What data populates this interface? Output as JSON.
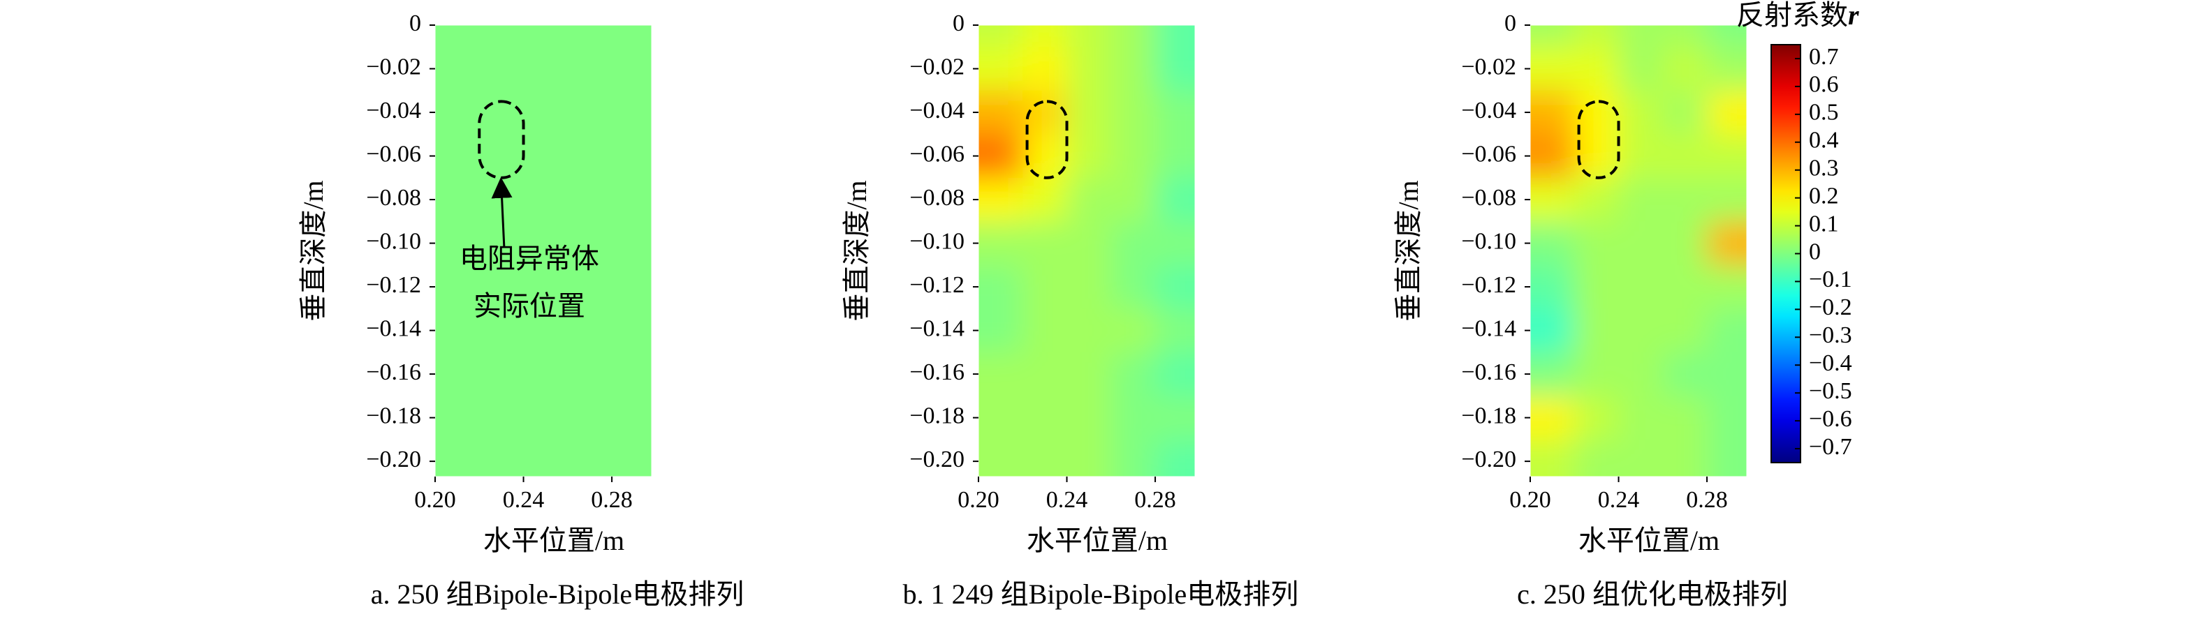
{
  "chart_data": [
    {
      "type": "heatmap",
      "caption": "a. 250 组Bipole-Bipole电极排列",
      "xlabel": "水平位置/m",
      "ylabel": "垂直深度/m",
      "xlim": [
        0.2,
        0.298
      ],
      "ylim": [
        -0.207,
        0
      ],
      "xticks": [
        {
          "value": 0.2,
          "label": "0.20"
        },
        {
          "value": 0.24,
          "label": "0.24"
        },
        {
          "value": 0.28,
          "label": "0.28"
        }
      ],
      "yticks": [
        0,
        {
          "value": -0.02,
          "label": "−0.02"
        },
        {
          "value": -0.04,
          "label": "−0.04"
        },
        {
          "value": -0.06,
          "label": "−0.06"
        },
        {
          "value": -0.08,
          "label": "−0.08"
        },
        {
          "value": -0.1,
          "label": "−0.10"
        },
        {
          "value": -0.12,
          "label": "−0.12"
        },
        {
          "value": -0.14,
          "label": "−0.14"
        },
        {
          "value": -0.16,
          "label": "−0.16"
        },
        {
          "value": -0.18,
          "label": "−0.18"
        },
        {
          "value": -0.2,
          "label": "−0.20"
        }
      ],
      "x": [
        0.21,
        0.23,
        0.25,
        0.27,
        0.29
      ],
      "y": [
        0,
        -0.02,
        -0.04,
        -0.06,
        -0.08,
        -0.1,
        -0.12,
        -0.14,
        -0.16,
        -0.18,
        -0.2
      ],
      "z": [
        [
          0,
          0,
          0,
          0,
          0
        ],
        [
          0,
          0,
          0,
          0,
          0
        ],
        [
          0,
          0,
          0,
          0,
          0
        ],
        [
          0,
          0,
          0,
          0,
          0
        ],
        [
          0,
          0,
          0,
          0,
          0
        ],
        [
          0,
          0,
          0,
          0,
          0
        ],
        [
          0,
          0,
          0,
          0,
          0
        ],
        [
          0,
          0,
          0,
          0,
          0
        ],
        [
          0,
          0,
          0,
          0,
          0
        ],
        [
          0,
          0,
          0,
          0,
          0
        ],
        [
          0,
          0,
          0,
          0,
          0
        ]
      ],
      "anomaly": {
        "x": [
          0.22,
          0.24
        ],
        "y": [
          -0.07,
          -0.035
        ]
      },
      "annotation": [
        "电阻异常体",
        "实际位置"
      ]
    },
    {
      "type": "heatmap",
      "caption": "b. 1 249 组Bipole-Bipole电极排列",
      "xlabel": "水平位置/m",
      "ylabel": "垂直深度/m",
      "xlim": [
        0.2,
        0.298
      ],
      "ylim": [
        -0.207,
        0
      ],
      "xticks": [
        {
          "value": 0.2,
          "label": "0.20"
        },
        {
          "value": 0.24,
          "label": "0.24"
        },
        {
          "value": 0.28,
          "label": "0.28"
        }
      ],
      "yticks": [
        0,
        {
          "value": -0.02,
          "label": "−0.02"
        },
        {
          "value": -0.04,
          "label": "−0.04"
        },
        {
          "value": -0.06,
          "label": "−0.06"
        },
        {
          "value": -0.08,
          "label": "−0.08"
        },
        {
          "value": -0.1,
          "label": "−0.10"
        },
        {
          "value": -0.12,
          "label": "−0.12"
        },
        {
          "value": -0.14,
          "label": "−0.14"
        },
        {
          "value": -0.16,
          "label": "−0.16"
        },
        {
          "value": -0.18,
          "label": "−0.18"
        },
        {
          "value": -0.2,
          "label": "−0.20"
        }
      ],
      "x": [
        0.21,
        0.23,
        0.25,
        0.27,
        0.29
      ],
      "y": [
        0,
        -0.02,
        -0.04,
        -0.06,
        -0.08,
        -0.1,
        -0.12,
        -0.14,
        -0.16,
        -0.18,
        -0.2
      ],
      "z": [
        [
          0.1,
          0.15,
          0.1,
          0.05,
          -0.05
        ],
        [
          0.15,
          0.2,
          0.1,
          0.05,
          -0.05
        ],
        [
          0.3,
          0.25,
          0.1,
          0.05,
          0
        ],
        [
          0.4,
          0.2,
          0.1,
          0.05,
          0
        ],
        [
          0.2,
          0.15,
          0.05,
          0.05,
          -0.05
        ],
        [
          0.05,
          0.05,
          0.05,
          0,
          0
        ],
        [
          0,
          0.05,
          0.05,
          0,
          -0.05
        ],
        [
          0,
          0.05,
          0.05,
          0.05,
          0
        ],
        [
          0.05,
          0.05,
          0.05,
          0,
          -0.05
        ],
        [
          0.05,
          0.05,
          0.05,
          0,
          0
        ],
        [
          0.05,
          0.05,
          0.05,
          0,
          -0.05
        ]
      ],
      "anomaly": {
        "x": [
          0.222,
          0.24
        ],
        "y": [
          -0.07,
          -0.035
        ]
      }
    },
    {
      "type": "heatmap",
      "caption": "c. 250 组优化电极排列",
      "xlabel": "水平位置/m",
      "ylabel": "垂直深度/m",
      "xlim": [
        0.2,
        0.298
      ],
      "ylim": [
        -0.207,
        0
      ],
      "xticks": [
        {
          "value": 0.2,
          "label": "0.20"
        },
        {
          "value": 0.24,
          "label": "0.24"
        },
        {
          "value": 0.28,
          "label": "0.28"
        }
      ],
      "yticks": [
        0,
        {
          "value": -0.02,
          "label": "−0.02"
        },
        {
          "value": -0.04,
          "label": "−0.04"
        },
        {
          "value": -0.06,
          "label": "−0.06"
        },
        {
          "value": -0.08,
          "label": "−0.08"
        },
        {
          "value": -0.1,
          "label": "−0.10"
        },
        {
          "value": -0.12,
          "label": "−0.12"
        },
        {
          "value": -0.14,
          "label": "−0.14"
        },
        {
          "value": -0.16,
          "label": "−0.16"
        },
        {
          "value": -0.18,
          "label": "−0.18"
        },
        {
          "value": -0.2,
          "label": "−0.20"
        }
      ],
      "x": [
        0.21,
        0.23,
        0.25,
        0.27,
        0.29
      ],
      "y": [
        0,
        -0.02,
        -0.04,
        -0.06,
        -0.08,
        -0.1,
        -0.12,
        -0.14,
        -0.16,
        -0.18,
        -0.2
      ],
      "z": [
        [
          0.05,
          0.1,
          0.05,
          0.05,
          0
        ],
        [
          0.15,
          0.15,
          0.05,
          0.1,
          0.05
        ],
        [
          0.3,
          0.2,
          0.1,
          0.05,
          0.2
        ],
        [
          0.35,
          0.2,
          0.1,
          0.1,
          0.1
        ],
        [
          0.15,
          0.1,
          0.05,
          0.05,
          0.05
        ],
        [
          0,
          0.05,
          0.05,
          0.05,
          0.3
        ],
        [
          -0.05,
          0.05,
          0.05,
          0.05,
          0.05
        ],
        [
          -0.1,
          0.05,
          0.05,
          0.05,
          0
        ],
        [
          0,
          0.05,
          0.05,
          0,
          0
        ],
        [
          0.2,
          0.1,
          0.05,
          0.05,
          0
        ],
        [
          0.1,
          0.05,
          0.05,
          0.05,
          0
        ]
      ],
      "anomaly": {
        "x": [
          0.222,
          0.24
        ],
        "y": [
          -0.07,
          -0.035
        ]
      },
      "colorbar": {
        "title": "反射系数",
        "symbol": "r",
        "clim": [
          -0.75,
          0.75
        ],
        "ticks": [
          0.7,
          0.6,
          0.5,
          0.4,
          0.3,
          0.2,
          0.1,
          0,
          {
            "value": -0.1,
            "label": "−0.1"
          },
          {
            "value": -0.2,
            "label": "−0.2"
          },
          {
            "value": -0.3,
            "label": "−0.3"
          },
          {
            "value": -0.4,
            "label": "−0.4"
          },
          {
            "value": -0.5,
            "label": "−0.5"
          },
          {
            "value": -0.6,
            "label": "−0.6"
          },
          {
            "value": -0.7,
            "label": "−0.7"
          }
        ]
      }
    }
  ]
}
